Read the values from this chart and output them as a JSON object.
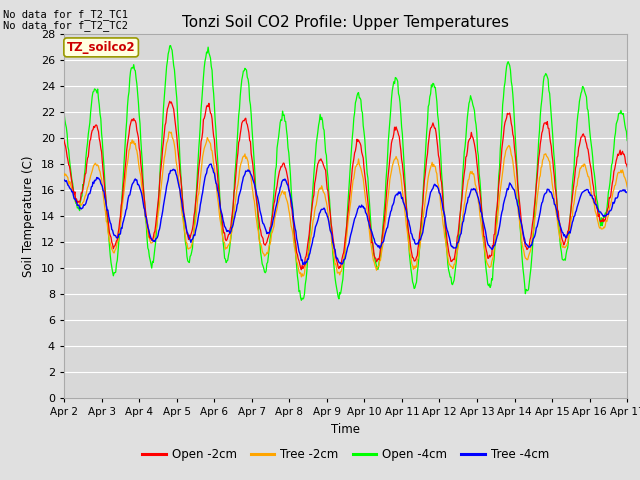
{
  "title": "Tonzi Soil CO2 Profile: Upper Temperatures",
  "ylabel": "Soil Temperature (C)",
  "xlabel": "Time",
  "annotation_line1": "No data for f_T2_TC1",
  "annotation_line2": "No data for f_T2_TC2",
  "legend_box_label": "TZ_soilco2",
  "ylim": [
    0,
    28
  ],
  "yticks": [
    0,
    2,
    4,
    6,
    8,
    10,
    12,
    14,
    16,
    18,
    20,
    22,
    24,
    26,
    28
  ],
  "xtick_labels": [
    "Apr 2",
    "Apr 3",
    "Apr 4",
    "Apr 5",
    "Apr 6",
    "Apr 7",
    "Apr 8",
    "Apr 9",
    "Apr 10",
    "Apr 11",
    "Apr 12",
    "Apr 13",
    "Apr 14",
    "Apr 15",
    "Apr 16",
    "Apr 17"
  ],
  "color_open2": "#ff0000",
  "color_tree2": "#ffa500",
  "color_open4": "#00ff00",
  "color_tree4": "#0000ff",
  "label_open2": "Open -2cm",
  "label_tree2": "Tree -2cm",
  "label_open4": "Open -4cm",
  "label_tree4": "Tree -4cm",
  "fig_bg": "#e0e0e0",
  "plot_bg": "#dcdcdc",
  "n_days": 15,
  "samples_per_day": 48
}
